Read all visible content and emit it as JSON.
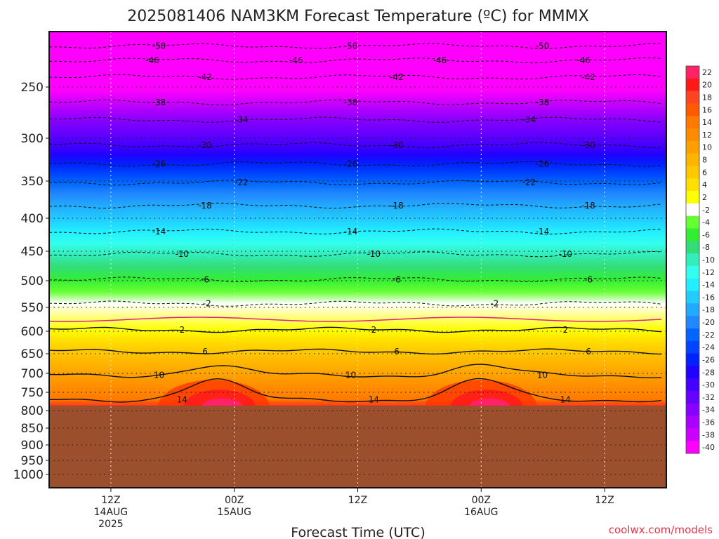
{
  "chart_data": {
    "type": "heatmap",
    "title": "2025081406 NAM3KM Forecast Temperature (ºC) for MMMX",
    "xlabel": "Forecast Time (UTC)",
    "ylabel": "",
    "credit": "coolwx.com/models",
    "y_ticks": [
      "250",
      "300",
      "350",
      "400",
      "450",
      "500",
      "550",
      "600",
      "650",
      "700",
      "750",
      "800",
      "850",
      "900",
      "950",
      "1000"
    ],
    "y_values": [
      250,
      300,
      350,
      400,
      450,
      500,
      550,
      600,
      650,
      700,
      750,
      800,
      850,
      900,
      950,
      1000
    ],
    "x_ticks": [
      {
        "hour": 12,
        "lines": [
          "12Z",
          "14AUG",
          "2025"
        ]
      },
      {
        "hour": 24,
        "lines": [
          "00Z",
          "15AUG"
        ]
      },
      {
        "hour": 36,
        "lines": [
          "12Z"
        ]
      },
      {
        "hour": 48,
        "lines": [
          "00Z",
          "16AUG"
        ]
      },
      {
        "hour": 60,
        "lines": [
          "12Z"
        ]
      }
    ],
    "x_range_hours": [
      6,
      66
    ],
    "y_range_hPa": [
      200,
      1000
    ],
    "surface_pressure_hPa": 785,
    "colorbar_labels": [
      "22",
      "20",
      "18",
      "16",
      "14",
      "12",
      "10",
      "8",
      "6",
      "4",
      "2",
      "-2",
      "-4",
      "-6",
      "-8",
      "-10",
      "-12",
      "-14",
      "-16",
      "-18",
      "-20",
      "-22",
      "-24",
      "-26",
      "-28",
      "-30",
      "-32",
      "-34",
      "-36",
      "-38",
      "-40"
    ],
    "colorbar_colors": [
      "#ff2266",
      "#ff1a1a",
      "#ff4422",
      "#ff5a00",
      "#ff7a00",
      "#ff8c00",
      "#ffa000",
      "#ffb400",
      "#ffc800",
      "#ffe000",
      "#ffff00",
      "#ffffff",
      "#66ff33",
      "#33ee33",
      "#33dd77",
      "#33eebb",
      "#33ffee",
      "#22eeff",
      "#22ccff",
      "#22aaff",
      "#2288ff",
      "#0066ff",
      "#0044ff",
      "#0022ff",
      "#2200ff",
      "#4400ff",
      "#6600ff",
      "#8800ff",
      "#aa00ff",
      "#cc00ff",
      "#ff00ff"
    ],
    "contours": [
      {
        "value": -50,
        "pressure": 213,
        "labels": [
          "-50",
          "-50",
          "-50"
        ]
      },
      {
        "value": -46,
        "pressure": 226,
        "labels": [
          "-46",
          "-46",
          "-46",
          "-46"
        ]
      },
      {
        "value": -42,
        "pressure": 241,
        "labels": [
          "-42",
          "-42",
          "-42"
        ]
      },
      {
        "value": -38,
        "pressure": 265,
        "labels": [
          "-38",
          "-38",
          "-38"
        ]
      },
      {
        "value": -34,
        "pressure": 282,
        "labels": [
          "-34",
          "-34"
        ]
      },
      {
        "value": -30,
        "pressure": 308,
        "labels": [
          "-30",
          "-30",
          "-30"
        ]
      },
      {
        "value": -26,
        "pressure": 330,
        "labels": [
          "-26",
          "-26",
          "-26"
        ]
      },
      {
        "value": -22,
        "pressure": 352,
        "labels": [
          "-22",
          "-22"
        ]
      },
      {
        "value": -18,
        "pressure": 383,
        "labels": [
          "-18",
          "-18",
          "-18"
        ]
      },
      {
        "value": -14,
        "pressure": 420,
        "labels": [
          "-14",
          "-14",
          "-14"
        ]
      },
      {
        "value": -10,
        "pressure": 455,
        "labels": [
          "-10",
          "-10",
          "-10"
        ]
      },
      {
        "value": -6,
        "pressure": 498,
        "labels": [
          "-6",
          "-6",
          "-6"
        ]
      },
      {
        "value": -2,
        "pressure": 543,
        "labels": [
          "-2",
          "-2"
        ]
      },
      {
        "value": 2,
        "pressure": 597,
        "labels": [
          "2",
          "2",
          "2"
        ]
      },
      {
        "value": 6,
        "pressure": 645,
        "labels": [
          "6",
          "6",
          "6"
        ]
      },
      {
        "value": 10,
        "pressure": 705,
        "labels": [
          "10",
          "10",
          "10"
        ]
      },
      {
        "value": 14,
        "pressure": 770,
        "labels": [
          "14",
          "14",
          "14"
        ]
      }
    ]
  }
}
